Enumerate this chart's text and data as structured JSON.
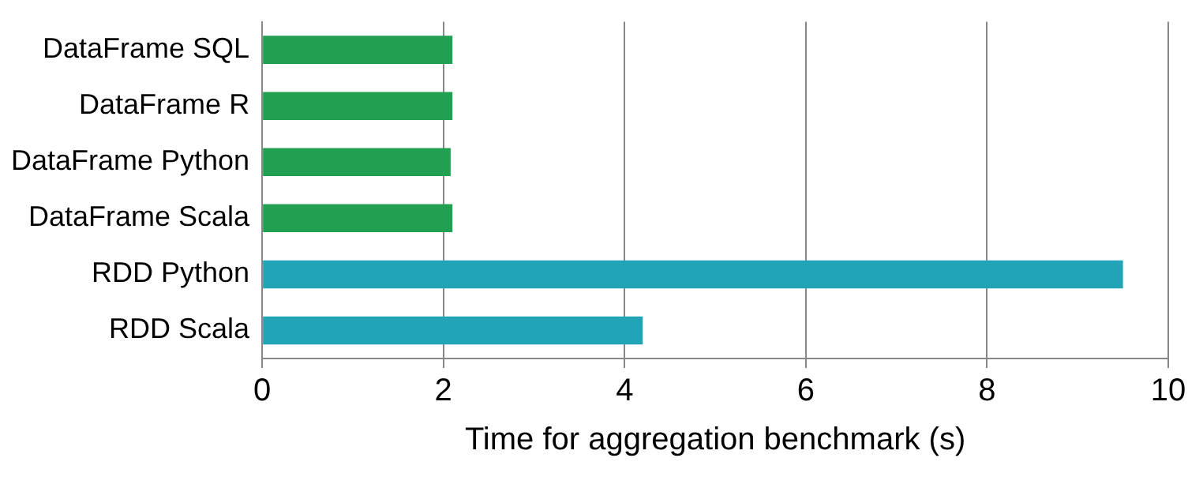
{
  "chart_data": {
    "type": "bar",
    "orientation": "horizontal",
    "xlabel": "Time for aggregation benchmark (s)",
    "categories": [
      "DataFrame SQL",
      "DataFrame R",
      "DataFrame Python",
      "DataFrame Scala",
      "RDD Python",
      "RDD Scala"
    ],
    "values": [
      2.1,
      2.1,
      2.08,
      2.1,
      9.5,
      4.2
    ],
    "colors": [
      "#22a052",
      "#22a052",
      "#22a052",
      "#22a052",
      "#21a4b5",
      "#21a4b5"
    ],
    "xlim": [
      0,
      10
    ],
    "xticks": [
      0,
      2,
      4,
      6,
      8,
      10
    ],
    "grid": "x",
    "legend": false
  }
}
